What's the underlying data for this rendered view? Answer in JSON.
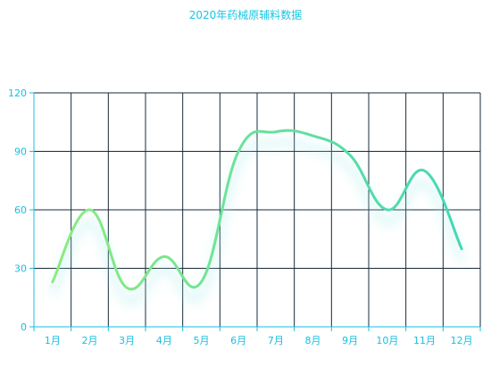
{
  "chart_data": {
    "type": "line",
    "title": "2020年药械原辅料数据",
    "xlabel": "",
    "ylabel": "",
    "categories": [
      "1月",
      "2月",
      "3月",
      "4月",
      "5月",
      "6月",
      "7月",
      "8月",
      "9月",
      "10月",
      "11月",
      "12月"
    ],
    "series": [
      {
        "values": [
          23,
          60,
          20,
          36,
          23,
          90,
          100,
          98,
          88,
          60,
          80,
          40
        ]
      }
    ],
    "ylim": [
      0,
      120
    ],
    "yticks": [
      0,
      30,
      60,
      90,
      120
    ],
    "grid": true,
    "legend": "none",
    "colors": {
      "line_start": "#90ec7d",
      "line_end": "#3fd7b9",
      "axis": "#16bfe0",
      "grid": "#172b3a"
    }
  }
}
